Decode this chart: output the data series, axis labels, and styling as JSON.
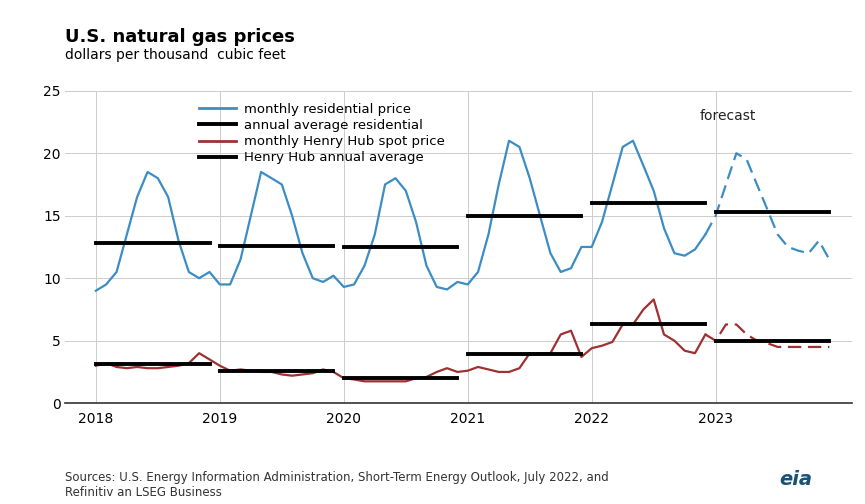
{
  "title": "U.S. natural gas prices",
  "subtitle": "dollars per thousand  cubic feet",
  "source_text": "Sources: U.S. Energy Information Administration, Short-Term Energy Outlook, July 2022, and\nRefinitiv an LSEG Business",
  "ylim": [
    0,
    25
  ],
  "yticks": [
    0,
    5,
    10,
    15,
    20,
    25
  ],
  "xticks": [
    2018,
    2019,
    2020,
    2021,
    2022,
    2023
  ],
  "forecast_label": "forecast",
  "residential_color": "#3b8dc4",
  "henry_hub_color": "#9e3132",
  "annual_avg_color": "#000000",
  "monthly_residential": {
    "x": [
      2018.0,
      2018.083,
      2018.167,
      2018.25,
      2018.333,
      2018.417,
      2018.5,
      2018.583,
      2018.667,
      2018.75,
      2018.833,
      2018.917,
      2019.0,
      2019.083,
      2019.167,
      2019.25,
      2019.333,
      2019.417,
      2019.5,
      2019.583,
      2019.667,
      2019.75,
      2019.833,
      2019.917,
      2020.0,
      2020.083,
      2020.167,
      2020.25,
      2020.333,
      2020.417,
      2020.5,
      2020.583,
      2020.667,
      2020.75,
      2020.833,
      2020.917,
      2021.0,
      2021.083,
      2021.167,
      2021.25,
      2021.333,
      2021.417,
      2021.5,
      2021.583,
      2021.667,
      2021.75,
      2021.833,
      2021.917,
      2022.0,
      2022.083,
      2022.167,
      2022.25,
      2022.333,
      2022.417,
      2022.5,
      2022.583,
      2022.667,
      2022.75,
      2022.833,
      2022.917
    ],
    "y": [
      9.0,
      9.5,
      10.5,
      13.5,
      16.5,
      18.5,
      18.0,
      16.5,
      13.0,
      10.5,
      10.0,
      10.5,
      9.5,
      9.5,
      11.5,
      15.0,
      18.5,
      18.0,
      17.5,
      15.0,
      12.0,
      10.0,
      9.7,
      10.2,
      9.3,
      9.5,
      11.0,
      13.5,
      17.5,
      18.0,
      17.0,
      14.5,
      11.0,
      9.3,
      9.1,
      9.7,
      9.5,
      10.5,
      13.5,
      17.5,
      21.0,
      20.5,
      18.0,
      15.0,
      12.0,
      10.5,
      10.8,
      12.5,
      12.5,
      14.5,
      17.5,
      20.5,
      21.0,
      19.0,
      17.0,
      14.0,
      12.0,
      11.8,
      12.3,
      13.5
    ]
  },
  "monthly_residential_forecast": {
    "x": [
      2022.917,
      2023.0,
      2023.083,
      2023.167,
      2023.25,
      2023.333,
      2023.417,
      2023.5,
      2023.583,
      2023.667,
      2023.75,
      2023.833,
      2023.917
    ],
    "y": [
      13.5,
      15.0,
      17.5,
      20.0,
      19.5,
      17.5,
      15.5,
      13.5,
      12.5,
      12.2,
      12.0,
      13.0,
      11.5
    ]
  },
  "annual_avg_residential": [
    {
      "x_start": 2018.0,
      "x_end": 2018.917,
      "y": 12.8
    },
    {
      "x_start": 2019.0,
      "x_end": 2019.917,
      "y": 12.6
    },
    {
      "x_start": 2020.0,
      "x_end": 2020.917,
      "y": 12.5
    },
    {
      "x_start": 2021.0,
      "x_end": 2021.917,
      "y": 15.0
    },
    {
      "x_start": 2022.0,
      "x_end": 2022.917,
      "y": 16.0
    },
    {
      "x_start": 2023.0,
      "x_end": 2023.917,
      "y": 15.3
    }
  ],
  "monthly_henry_hub": {
    "x": [
      2018.0,
      2018.083,
      2018.167,
      2018.25,
      2018.333,
      2018.417,
      2018.5,
      2018.583,
      2018.667,
      2018.75,
      2018.833,
      2018.917,
      2019.0,
      2019.083,
      2019.167,
      2019.25,
      2019.333,
      2019.417,
      2019.5,
      2019.583,
      2019.667,
      2019.75,
      2019.833,
      2019.917,
      2020.0,
      2020.083,
      2020.167,
      2020.25,
      2020.333,
      2020.417,
      2020.5,
      2020.583,
      2020.667,
      2020.75,
      2020.833,
      2020.917,
      2021.0,
      2021.083,
      2021.167,
      2021.25,
      2021.333,
      2021.417,
      2021.5,
      2021.583,
      2021.667,
      2021.75,
      2021.833,
      2021.917,
      2022.0,
      2022.083,
      2022.167,
      2022.25,
      2022.333,
      2022.417,
      2022.5,
      2022.583,
      2022.667,
      2022.75,
      2022.833,
      2022.917
    ],
    "y": [
      3.0,
      3.2,
      2.9,
      2.8,
      2.9,
      2.8,
      2.8,
      2.9,
      3.0,
      3.2,
      4.0,
      3.5,
      3.0,
      2.6,
      2.7,
      2.6,
      2.5,
      2.5,
      2.3,
      2.2,
      2.3,
      2.4,
      2.7,
      2.5,
      2.0,
      1.9,
      1.75,
      1.75,
      1.75,
      1.75,
      1.75,
      2.0,
      2.1,
      2.5,
      2.8,
      2.5,
      2.6,
      2.9,
      2.7,
      2.5,
      2.5,
      2.8,
      4.0,
      4.0,
      4.0,
      5.5,
      5.8,
      3.7,
      4.4,
      4.6,
      4.9,
      6.3,
      6.3,
      7.5,
      8.3,
      5.5,
      5.0,
      4.2,
      4.0,
      5.5
    ]
  },
  "monthly_henry_hub_forecast": {
    "x": [
      2022.917,
      2023.0,
      2023.083,
      2023.167,
      2023.25,
      2023.333,
      2023.417,
      2023.5,
      2023.583,
      2023.667,
      2023.75,
      2023.833,
      2023.917
    ],
    "y": [
      5.5,
      5.0,
      6.3,
      6.3,
      5.5,
      5.0,
      4.8,
      4.5,
      4.5,
      4.5,
      4.5,
      4.5,
      4.5
    ]
  },
  "henry_hub_annual_avg": [
    {
      "x_start": 2018.0,
      "x_end": 2018.917,
      "y": 3.15
    },
    {
      "x_start": 2019.0,
      "x_end": 2019.917,
      "y": 2.55
    },
    {
      "x_start": 2020.0,
      "x_end": 2020.917,
      "y": 2.05
    },
    {
      "x_start": 2021.0,
      "x_end": 2021.917,
      "y": 3.9
    },
    {
      "x_start": 2022.0,
      "x_end": 2022.917,
      "y": 6.3
    },
    {
      "x_start": 2023.0,
      "x_end": 2023.917,
      "y": 5.0
    }
  ],
  "forecast_start_x": 2022.917,
  "xlim": [
    2017.75,
    2024.1
  ]
}
